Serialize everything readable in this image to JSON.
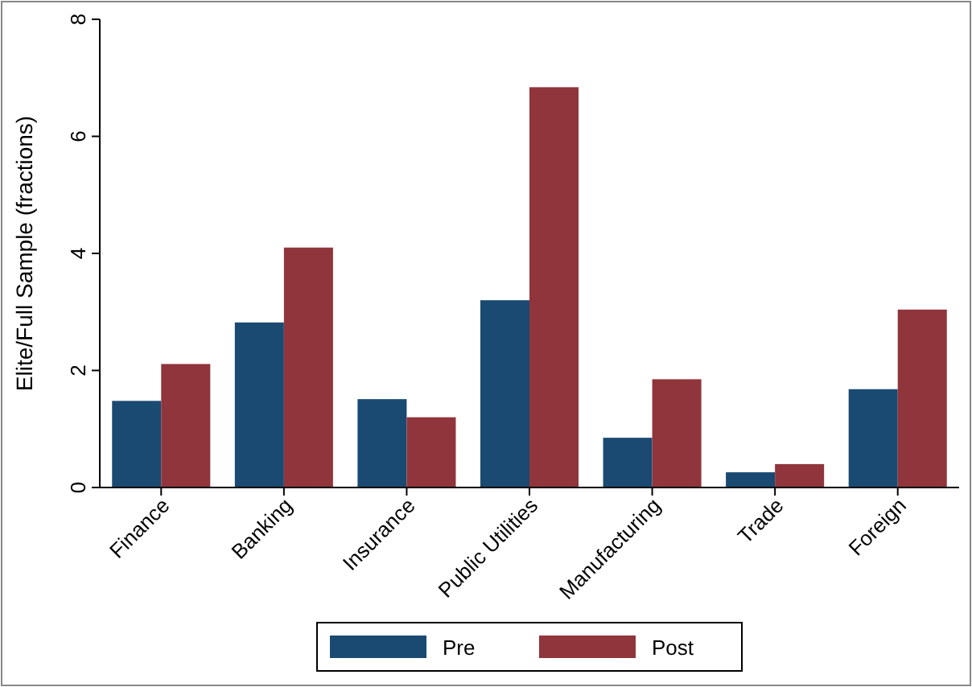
{
  "chart_data": {
    "type": "bar",
    "ylabel": "Elite/Full Sample (fractions)",
    "categories": [
      "Finance",
      "Banking",
      "Insurance",
      "Public Utilities",
      "Manufacturing",
      "Trade",
      "Foreign"
    ],
    "series": [
      {
        "name": "Pre",
        "color": "#1a4a72",
        "values": [
          1.48,
          2.82,
          1.51,
          3.2,
          0.85,
          0.26,
          1.68
        ]
      },
      {
        "name": "Post",
        "color": "#90353b",
        "values": [
          2.11,
          4.1,
          1.2,
          6.84,
          1.85,
          0.4,
          3.04
        ]
      }
    ],
    "ylim": [
      0,
      8
    ],
    "yticks": [
      0,
      2,
      4,
      6,
      8
    ],
    "grid": false,
    "legend": "bottom"
  }
}
